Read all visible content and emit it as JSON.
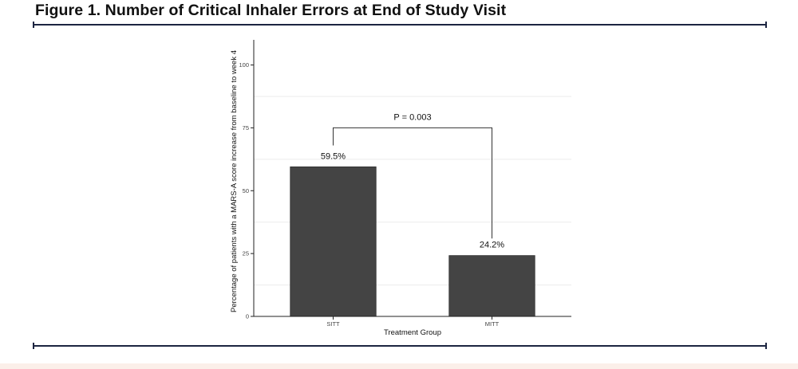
{
  "figure": {
    "title": "Figure 1. Number of Critical Inhaler Errors at End of Study Visit"
  },
  "colors": {
    "bar": "#444444",
    "axis": "#222222",
    "grid": "#ebebeb",
    "rule": "#1c2541",
    "title": "#111111"
  },
  "chart_data": {
    "type": "bar",
    "title": "",
    "xlabel": "Treatment Group",
    "ylabel": "Percentage of patients with a MARS-A score increase from baseline to week 4",
    "categories": [
      "SITT",
      "MITT"
    ],
    "values": [
      59.5,
      24.2
    ],
    "data_labels": [
      "59.5%",
      "24.2%"
    ],
    "ylim": [
      0,
      110
    ],
    "yticks": [
      0,
      25,
      50,
      75,
      100
    ],
    "grid": "horizontal minor lines",
    "legend": "none",
    "annotation": {
      "text": "P = 0.003",
      "type": "significance bracket",
      "between": [
        "SITT",
        "MITT"
      ],
      "bracket_top": 75,
      "left_end": 68,
      "right_end": 31
    }
  }
}
